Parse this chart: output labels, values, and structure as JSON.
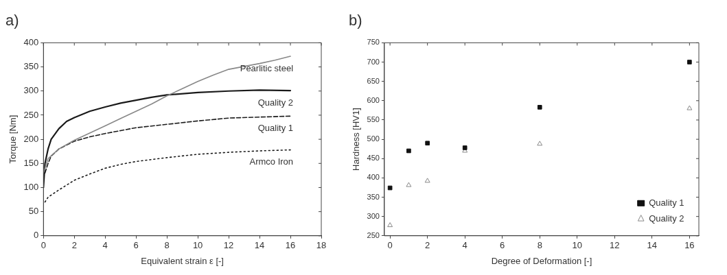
{
  "chart_data": [
    {
      "type": "line",
      "title": "a)",
      "xlabel": "Equivalent strain ε [-]",
      "ylabel": "Torque [Nm]",
      "xlim": [
        0,
        18
      ],
      "xticks": [
        0,
        2,
        4,
        6,
        8,
        10,
        12,
        14,
        16,
        18
      ],
      "ylim": [
        0,
        400
      ],
      "yticks": [
        0,
        50,
        100,
        150,
        200,
        250,
        300,
        350,
        400
      ],
      "grid": false,
      "marker": "none",
      "series": [
        {
          "name": "Pearlitic steel",
          "color": "#888888",
          "line_style": "solid",
          "x": [
            0,
            0.3,
            1,
            2,
            3,
            4,
            5,
            6,
            7,
            8,
            9,
            10,
            11,
            12,
            13,
            14,
            15,
            16
          ],
          "values": [
            130,
            160,
            180,
            198,
            213,
            228,
            243,
            258,
            273,
            290,
            305,
            320,
            333,
            345,
            351,
            357,
            364,
            372
          ]
        },
        {
          "name": "Quality 2",
          "color": "#1a1a1a",
          "line_style": "solid",
          "x": [
            0,
            0.1,
            0.3,
            0.5,
            1,
            1.5,
            2,
            3,
            4,
            5,
            6,
            7,
            8,
            10,
            12,
            14,
            16
          ],
          "values": [
            100,
            150,
            180,
            200,
            222,
            237,
            245,
            258,
            267,
            275,
            281,
            287,
            292,
            297,
            300,
            302,
            301
          ]
        },
        {
          "name": "Quality 1",
          "color": "#1a1a1a",
          "line_style": "dashed",
          "x": [
            0.1,
            0.3,
            0.5,
            1,
            2,
            3,
            4,
            5,
            6,
            8,
            10,
            12,
            14,
            16
          ],
          "values": [
            130,
            150,
            165,
            180,
            196,
            205,
            212,
            218,
            224,
            231,
            238,
            244,
            246,
            248
          ]
        },
        {
          "name": "Armco Iron",
          "color": "#1a1a1a",
          "line_style": "dotted",
          "x": [
            0.1,
            0.3,
            1,
            2,
            3,
            4,
            5,
            6,
            8,
            10,
            12,
            14,
            16
          ],
          "values": [
            70,
            80,
            95,
            115,
            128,
            140,
            148,
            154,
            162,
            169,
            173,
            176,
            178
          ]
        }
      ]
    },
    {
      "type": "scatter",
      "title": "b)",
      "xlabel": "Degree of Deformation [-]",
      "ylabel": "Hardness [HV1]",
      "xlim": [
        -0.3,
        16.5
      ],
      "xticks": [
        0,
        2,
        4,
        6,
        8,
        10,
        12,
        14,
        16
      ],
      "ylim": [
        250,
        750
      ],
      "yticks": [
        250,
        300,
        350,
        400,
        450,
        500,
        550,
        600,
        650,
        700,
        750
      ],
      "grid": false,
      "legend": "bottom right",
      "series": [
        {
          "name": "Quality 1",
          "color": "#111111",
          "marker": "square",
          "x": [
            0,
            1,
            2,
            4,
            8,
            16
          ],
          "values": [
            374,
            470,
            490,
            478,
            583,
            700
          ]
        },
        {
          "name": "Quality 2",
          "color": "#888888",
          "marker": "triangle",
          "x": [
            0,
            1,
            2,
            4,
            8,
            16
          ],
          "values": [
            277,
            381,
            392,
            470,
            488,
            580
          ]
        }
      ]
    }
  ]
}
